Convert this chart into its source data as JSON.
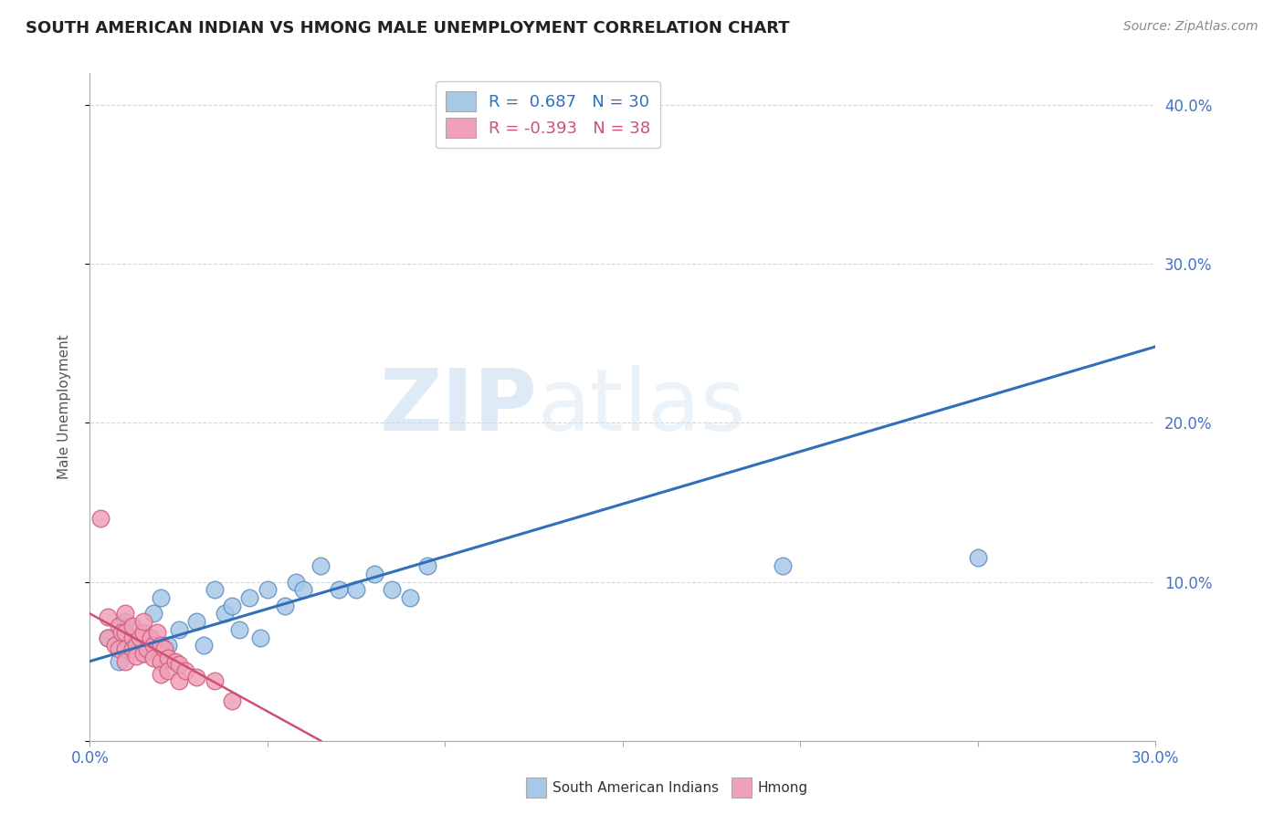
{
  "title": "SOUTH AMERICAN INDIAN VS HMONG MALE UNEMPLOYMENT CORRELATION CHART",
  "source": "Source: ZipAtlas.com",
  "ylabel": "Male Unemployment",
  "xlim": [
    0.0,
    0.3
  ],
  "ylim": [
    0.0,
    0.42
  ],
  "xticks": [
    0.0,
    0.05,
    0.1,
    0.15,
    0.2,
    0.25,
    0.3
  ],
  "yticks": [
    0.0,
    0.1,
    0.2,
    0.3,
    0.4
  ],
  "right_ytick_labels": [
    "",
    "10.0%",
    "20.0%",
    "30.0%",
    "40.0%"
  ],
  "xtick_labels": [
    "0.0%",
    "",
    "",
    "",
    "",
    "",
    "30.0%"
  ],
  "background_color": "#ffffff",
  "watermark_zip": "ZIP",
  "watermark_atlas": "atlas",
  "blue_color": "#a8c8e8",
  "pink_color": "#f0a0b8",
  "blue_edge": "#6090c0",
  "pink_edge": "#d06080",
  "line_blue": "#3070b8",
  "line_pink": "#d05070",
  "grid_color": "#cccccc",
  "R_blue": 0.687,
  "N_blue": 30,
  "R_pink": -0.393,
  "N_pink": 38,
  "blue_scatter": [
    [
      0.005,
      0.065
    ],
    [
      0.008,
      0.05
    ],
    [
      0.01,
      0.075
    ],
    [
      0.012,
      0.06
    ],
    [
      0.015,
      0.055
    ],
    [
      0.018,
      0.08
    ],
    [
      0.02,
      0.09
    ],
    [
      0.022,
      0.06
    ],
    [
      0.025,
      0.07
    ],
    [
      0.03,
      0.075
    ],
    [
      0.032,
      0.06
    ],
    [
      0.035,
      0.095
    ],
    [
      0.038,
      0.08
    ],
    [
      0.04,
      0.085
    ],
    [
      0.042,
      0.07
    ],
    [
      0.045,
      0.09
    ],
    [
      0.048,
      0.065
    ],
    [
      0.05,
      0.095
    ],
    [
      0.055,
      0.085
    ],
    [
      0.058,
      0.1
    ],
    [
      0.06,
      0.095
    ],
    [
      0.065,
      0.11
    ],
    [
      0.07,
      0.095
    ],
    [
      0.075,
      0.095
    ],
    [
      0.08,
      0.105
    ],
    [
      0.085,
      0.095
    ],
    [
      0.09,
      0.09
    ],
    [
      0.095,
      0.11
    ],
    [
      0.195,
      0.11
    ],
    [
      0.25,
      0.115
    ]
  ],
  "pink_scatter": [
    [
      0.003,
      0.14
    ],
    [
      0.005,
      0.065
    ],
    [
      0.005,
      0.078
    ],
    [
      0.007,
      0.06
    ],
    [
      0.008,
      0.072
    ],
    [
      0.008,
      0.058
    ],
    [
      0.009,
      0.068
    ],
    [
      0.01,
      0.08
    ],
    [
      0.01,
      0.068
    ],
    [
      0.01,
      0.058
    ],
    [
      0.01,
      0.05
    ],
    [
      0.012,
      0.065
    ],
    [
      0.012,
      0.058
    ],
    [
      0.012,
      0.072
    ],
    [
      0.013,
      0.06
    ],
    [
      0.013,
      0.053
    ],
    [
      0.014,
      0.065
    ],
    [
      0.015,
      0.055
    ],
    [
      0.015,
      0.068
    ],
    [
      0.015,
      0.075
    ],
    [
      0.016,
      0.058
    ],
    [
      0.017,
      0.065
    ],
    [
      0.018,
      0.06
    ],
    [
      0.018,
      0.052
    ],
    [
      0.019,
      0.068
    ],
    [
      0.02,
      0.06
    ],
    [
      0.02,
      0.05
    ],
    [
      0.02,
      0.042
    ],
    [
      0.021,
      0.058
    ],
    [
      0.022,
      0.052
    ],
    [
      0.022,
      0.044
    ],
    [
      0.024,
      0.05
    ],
    [
      0.025,
      0.048
    ],
    [
      0.025,
      0.038
    ],
    [
      0.027,
      0.044
    ],
    [
      0.03,
      0.04
    ],
    [
      0.035,
      0.038
    ],
    [
      0.04,
      0.025
    ]
  ],
  "blue_line_x": [
    0.0,
    0.3
  ],
  "blue_line_y": [
    0.05,
    0.248
  ],
  "pink_line_x": [
    0.0,
    0.065
  ],
  "pink_line_y": [
    0.08,
    0.0
  ]
}
